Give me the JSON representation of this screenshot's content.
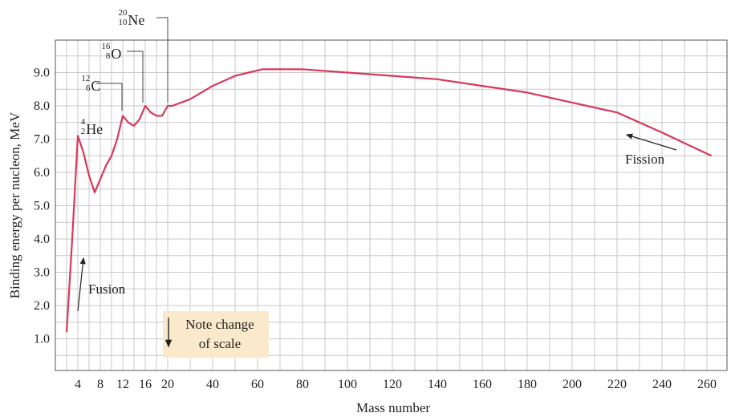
{
  "chart_data": {
    "type": "line",
    "title": "",
    "xlabel": "Mass number",
    "ylabel": "Binding energy per nucleon, MeV",
    "x_axis_note": "Note change of scale",
    "grid": true,
    "line_color": "#d8385a",
    "note_box_color": "#fbe9cc",
    "x_ticks_left": [
      4,
      8,
      12,
      16,
      20
    ],
    "x_ticks_right": [
      40,
      60,
      80,
      100,
      120,
      140,
      160,
      180,
      200,
      220,
      240,
      260
    ],
    "y_ticks": [
      "1.0",
      "2.0",
      "3.0",
      "4.0",
      "5.0",
      "6.0",
      "7.0",
      "8.0",
      "9.0"
    ],
    "ylim": [
      0,
      10
    ],
    "series": [
      {
        "x": [
          2,
          3,
          4,
          5,
          6,
          7,
          8,
          9,
          10,
          11,
          12,
          13,
          14,
          15,
          16,
          17,
          18,
          19,
          20,
          22,
          30,
          40,
          50,
          56,
          62,
          70,
          80,
          100,
          120,
          140,
          160,
          180,
          200,
          220,
          240,
          262
        ],
        "y": [
          1.2,
          4.0,
          7.1,
          6.6,
          5.9,
          5.4,
          5.8,
          6.2,
          6.5,
          7.0,
          7.7,
          7.5,
          7.4,
          7.6,
          8.0,
          7.8,
          7.7,
          7.7,
          8.0,
          8.0,
          8.2,
          8.6,
          8.9,
          9.0,
          9.1,
          9.1,
          9.1,
          9.0,
          8.9,
          8.8,
          8.6,
          8.4,
          8.1,
          7.8,
          7.2,
          6.5
        ]
      }
    ],
    "annotations": [
      {
        "symbol": "He",
        "mass": "4",
        "atomic": "2",
        "x": 4,
        "y": 7.1
      },
      {
        "symbol": "C",
        "mass": "12",
        "atomic": "6",
        "x": 12,
        "y": 7.7
      },
      {
        "symbol": "O",
        "mass": "16",
        "atomic": "8",
        "x": 16,
        "y": 8.0
      },
      {
        "symbol": "Ne",
        "mass": "20",
        "atomic": "10",
        "x": 20,
        "y": 8.0
      }
    ],
    "labels": {
      "fusion": "Fusion",
      "fission": "Fission"
    }
  }
}
